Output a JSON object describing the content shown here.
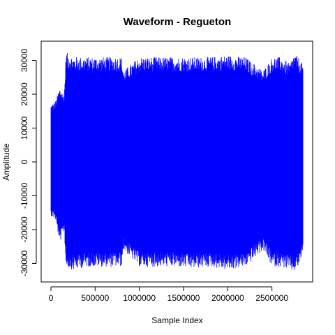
{
  "chart_data": {
    "type": "line",
    "title": "Waveform - Regueton",
    "xlabel": "Sample Index",
    "ylabel": "Amplitude",
    "xlim": [
      0,
      2850000
    ],
    "ylim": [
      -33000,
      33000
    ],
    "x_ticks": [
      0,
      500000,
      1000000,
      1500000,
      2000000,
      2500000
    ],
    "x_tick_labels": [
      "0",
      "500000",
      "1000000",
      "1500000",
      "2000000",
      "2500000"
    ],
    "y_ticks": [
      -30000,
      -20000,
      -10000,
      0,
      10000,
      20000,
      30000
    ],
    "y_tick_labels": [
      "-30000",
      "-20000",
      "-10000",
      "0",
      "10000",
      "20000",
      "30000"
    ],
    "series_color": "#0000ff",
    "grid": false,
    "envelope": {
      "x": [
        0,
        50000,
        100000,
        150000,
        170000,
        250000,
        400000,
        600000,
        800000,
        820000,
        1000000,
        1200000,
        1400000,
        1600000,
        1800000,
        2000000,
        2200000,
        2400000,
        2500000,
        2600000,
        2700000,
        2750000,
        2800000,
        2850000
      ],
      "y_max": [
        17000,
        18000,
        22000,
        20000,
        32500,
        31000,
        31000,
        31000,
        31000,
        27000,
        31000,
        31000,
        31000,
        31000,
        31000,
        31500,
        31000,
        27000,
        31000,
        31000,
        29000,
        32000,
        31000,
        29000
      ],
      "y_min": [
        -16000,
        -17000,
        -24000,
        -20000,
        -31000,
        -32000,
        -31000,
        -31000,
        -31000,
        -26000,
        -31000,
        -31000,
        -31000,
        -31500,
        -31000,
        -32000,
        -31000,
        -26000,
        -31000,
        -31000,
        -32000,
        -32500,
        -31000,
        -27000
      ]
    }
  }
}
